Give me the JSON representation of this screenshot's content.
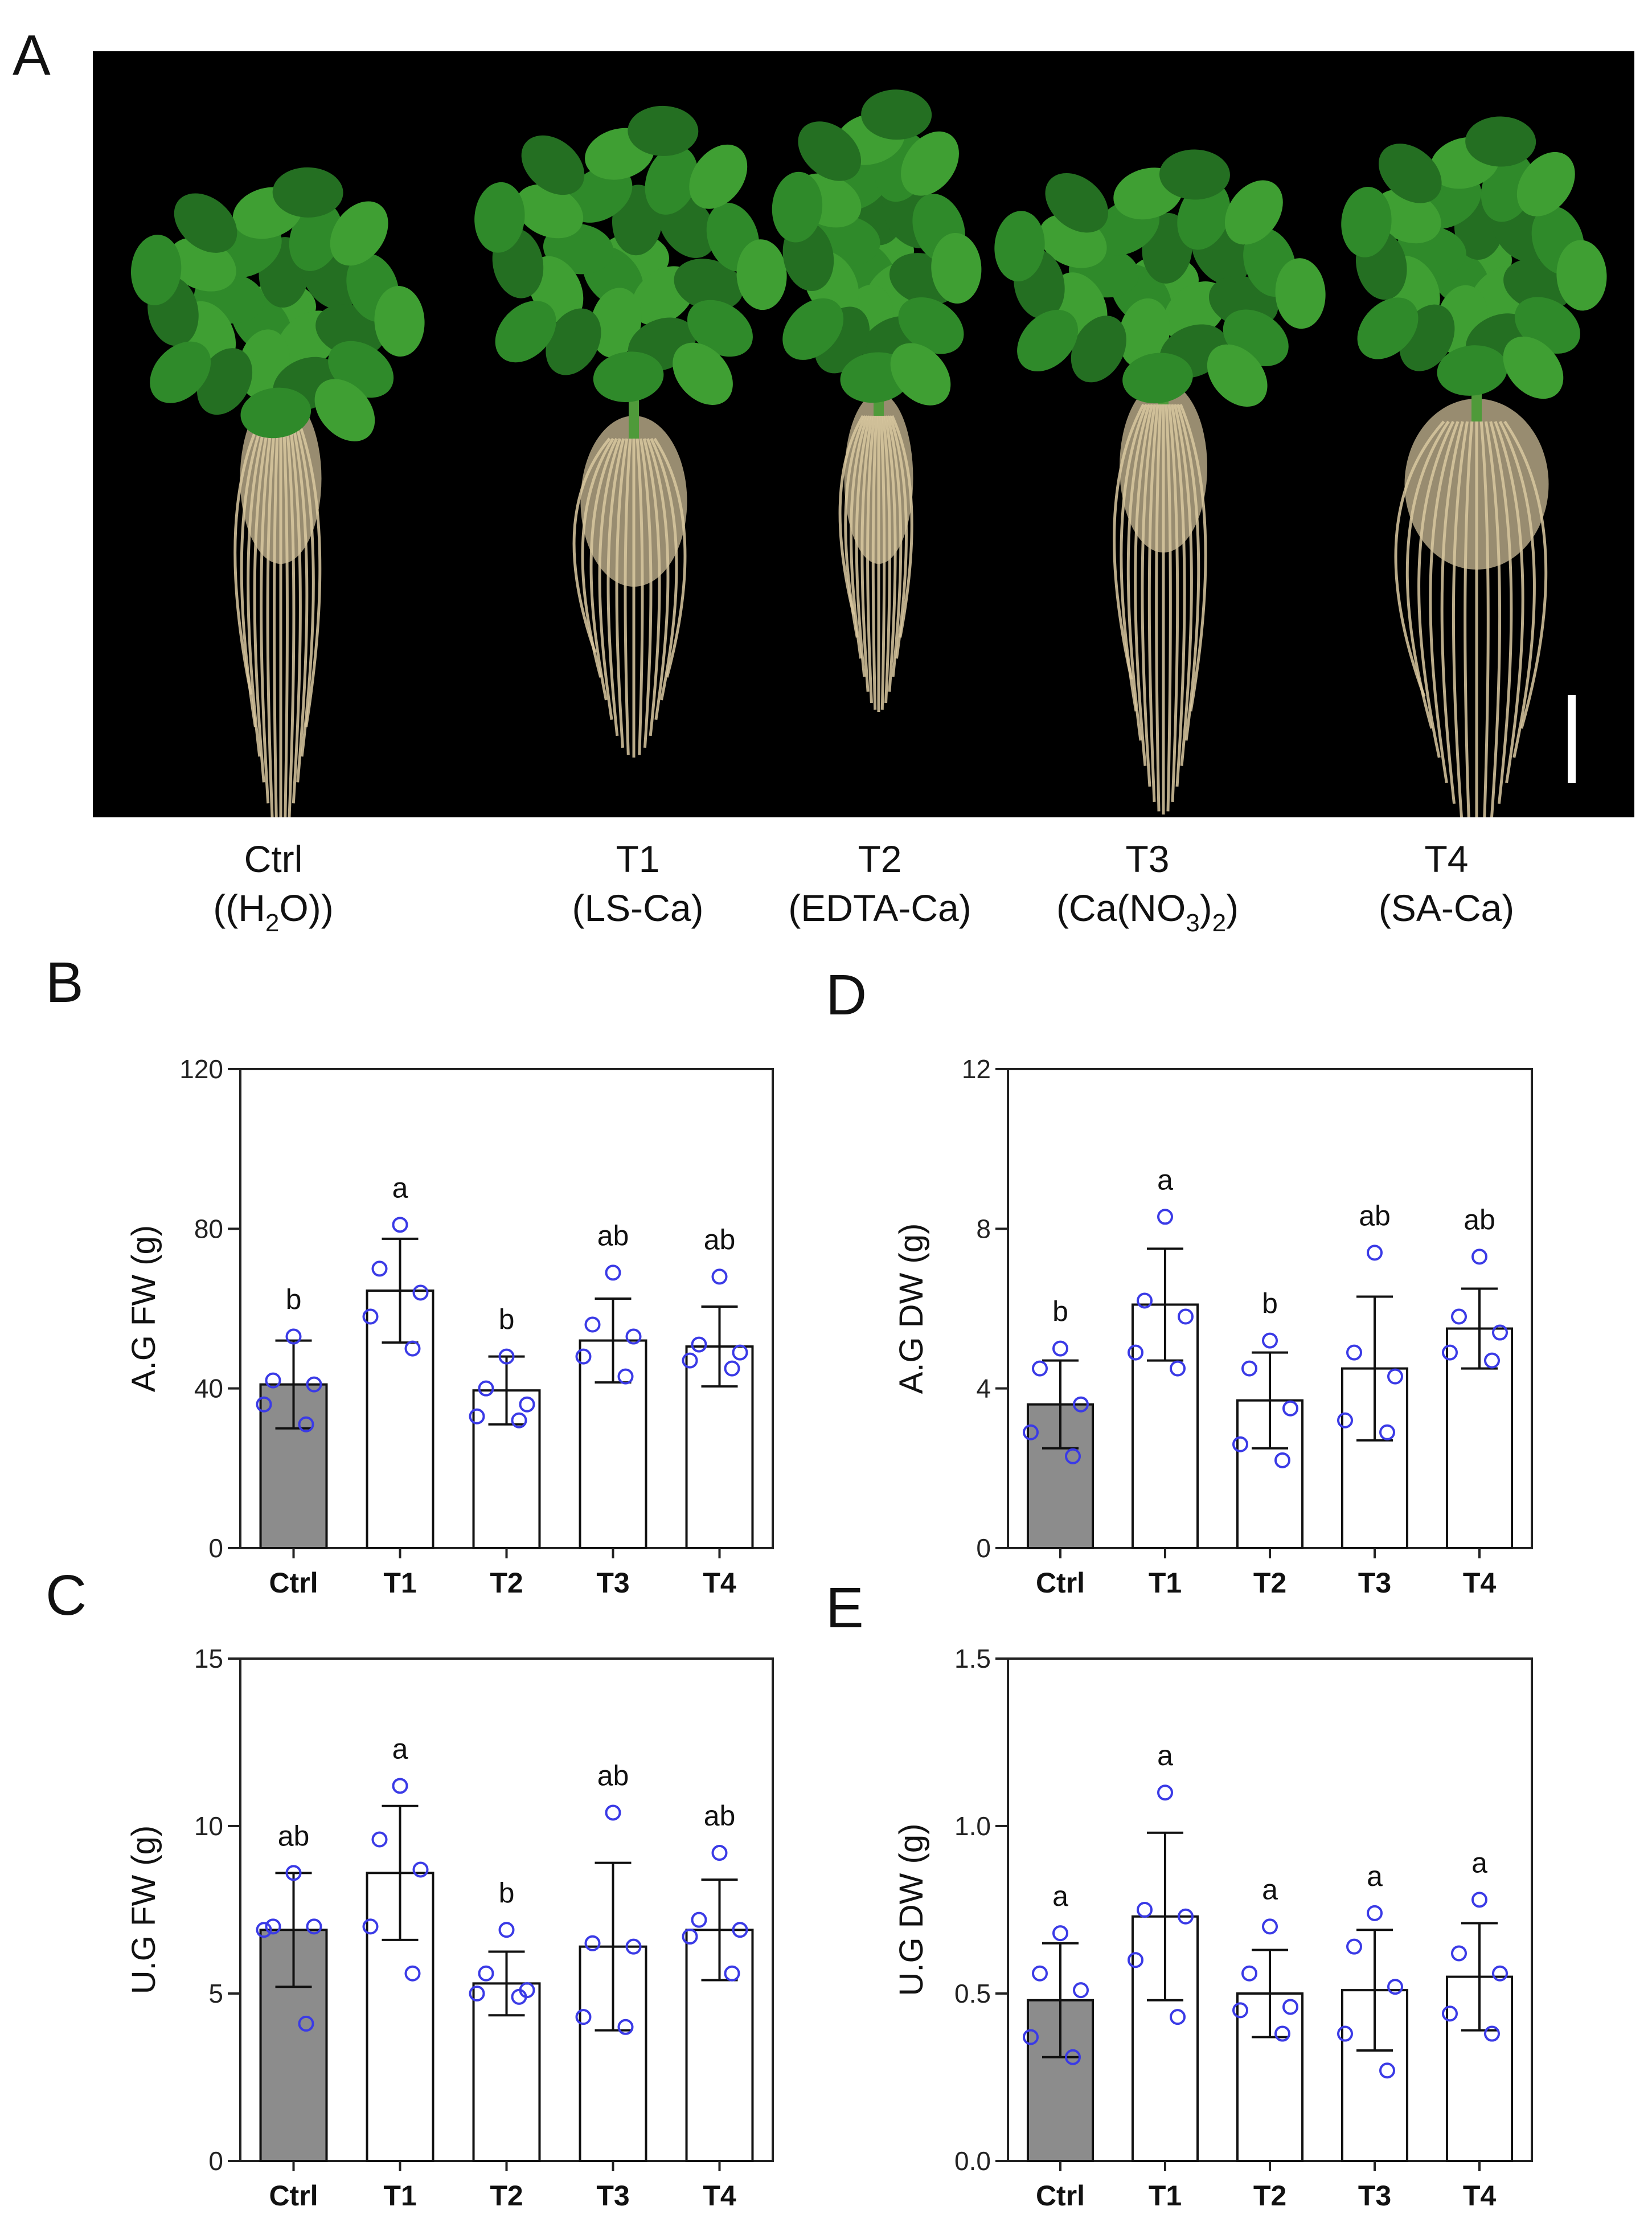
{
  "panel_labels": [
    "A",
    "B",
    "C",
    "D",
    "E"
  ],
  "photo": {
    "groups": [
      {
        "name": "Ctrl",
        "sub": [
          "(H",
          "2",
          "O)"
        ]
      },
      {
        "name": "T1",
        "sub": [
          "(LS-Ca)"
        ]
      },
      {
        "name": "T2",
        "sub": [
          "(EDTA-Ca)"
        ]
      },
      {
        "name": "T3",
        "sub": [
          "(Ca(NO",
          "3",
          ")",
          "2",
          ")"
        ]
      },
      {
        "name": "T4",
        "sub": [
          "(SA-Ca)"
        ]
      }
    ]
  },
  "colors": {
    "ctrl_bar": "#8c8c8c",
    "bar": "#ffffff",
    "points": "#3a3ae6",
    "foliage": "#2f8a2a",
    "roots": "#d9c8a0"
  },
  "chart_data": [
    {
      "panel": "B",
      "type": "bar",
      "ylabel": "A.G FW (g)",
      "categories": [
        "Ctrl",
        "T1",
        "T2",
        "T3",
        "T4"
      ],
      "values": [
        41,
        64.5,
        39.5,
        52,
        50.5
      ],
      "errors": [
        11,
        13,
        8.5,
        10.5,
        10
      ],
      "points": [
        [
          53,
          42,
          41,
          36,
          31
        ],
        [
          81,
          70,
          64,
          58,
          50
        ],
        [
          48,
          40,
          36,
          33,
          32
        ],
        [
          69,
          56,
          53,
          48,
          43
        ],
        [
          68,
          51,
          49,
          47,
          45
        ]
      ],
      "letters": [
        "b",
        "a",
        "b",
        "ab",
        "ab"
      ],
      "ylim": [
        0,
        120
      ],
      "yticks": [
        "0",
        "40",
        "80",
        "120"
      ]
    },
    {
      "panel": "C",
      "type": "bar",
      "ylabel": "U.G FW (g)",
      "categories": [
        "Ctrl",
        "T1",
        "T2",
        "T3",
        "T4"
      ],
      "values": [
        6.9,
        8.6,
        5.3,
        6.4,
        6.9
      ],
      "errors": [
        1.7,
        2.0,
        0.95,
        2.5,
        1.5
      ],
      "points": [
        [
          8.6,
          7.0,
          7.0,
          6.9,
          4.1
        ],
        [
          11.2,
          9.6,
          8.7,
          7.0,
          5.6
        ],
        [
          6.9,
          5.6,
          5.1,
          5.0,
          4.9
        ],
        [
          10.4,
          6.5,
          6.4,
          4.3,
          4.0
        ],
        [
          9.2,
          7.2,
          6.9,
          6.7,
          5.6
        ]
      ],
      "letters": [
        "ab",
        "a",
        "b",
        "ab",
        "ab"
      ],
      "ylim": [
        0,
        15
      ],
      "yticks": [
        "0",
        "5",
        "10",
        "15"
      ]
    },
    {
      "panel": "D",
      "type": "bar",
      "ylabel": "A.G DW (g)",
      "categories": [
        "Ctrl",
        "T1",
        "T2",
        "T3",
        "T4"
      ],
      "values": [
        3.6,
        6.1,
        3.7,
        4.5,
        5.5
      ],
      "errors": [
        1.1,
        1.4,
        1.2,
        1.8,
        1.0
      ],
      "points": [
        [
          5.0,
          4.5,
          3.6,
          2.9,
          2.3
        ],
        [
          8.3,
          6.2,
          5.8,
          4.9,
          4.5
        ],
        [
          5.2,
          4.5,
          3.5,
          2.6,
          2.2
        ],
        [
          7.4,
          4.9,
          4.3,
          3.2,
          2.9
        ],
        [
          7.3,
          5.8,
          5.4,
          4.9,
          4.7
        ]
      ],
      "letters": [
        "b",
        "a",
        "b",
        "ab",
        "ab"
      ],
      "ylim": [
        0,
        12
      ],
      "yticks": [
        "0",
        "4",
        "8",
        "12"
      ]
    },
    {
      "panel": "E",
      "type": "bar",
      "ylabel": "U.G DW (g)",
      "categories": [
        "Ctrl",
        "T1",
        "T2",
        "T3",
        "T4"
      ],
      "values": [
        0.48,
        0.73,
        0.5,
        0.51,
        0.55
      ],
      "errors": [
        0.17,
        0.25,
        0.13,
        0.18,
        0.16
      ],
      "points": [
        [
          0.68,
          0.56,
          0.51,
          0.37,
          0.31
        ],
        [
          1.1,
          0.75,
          0.73,
          0.6,
          0.43
        ],
        [
          0.7,
          0.56,
          0.46,
          0.45,
          0.38
        ],
        [
          0.74,
          0.64,
          0.52,
          0.38,
          0.27
        ],
        [
          0.78,
          0.62,
          0.56,
          0.44,
          0.38
        ]
      ],
      "letters": [
        "a",
        "a",
        "a",
        "a",
        "a"
      ],
      "ylim": [
        0,
        1.5
      ],
      "yticks": [
        "0.0",
        "0.5",
        "1.0",
        "1.5"
      ]
    }
  ]
}
